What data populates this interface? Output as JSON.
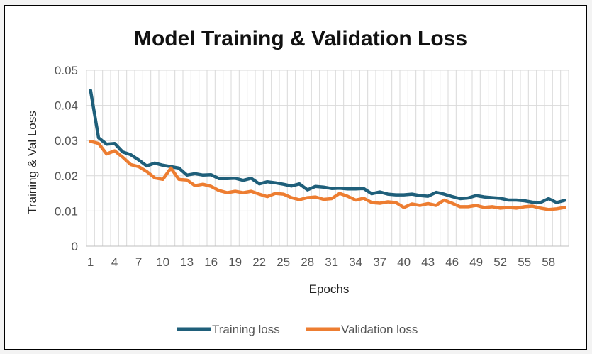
{
  "chart_data": {
    "type": "line",
    "title": "Model Training & Validation Loss",
    "xlabel": "Epochs",
    "ylabel": "Training & Val Loss",
    "ylim": [
      0,
      0.05
    ],
    "yticks": [
      "0",
      "0.01",
      "0.02",
      "0.03",
      "0.04",
      "0.05"
    ],
    "ytick_values": [
      0,
      0.01,
      0.02,
      0.03,
      0.04,
      0.05
    ],
    "xticks": [
      "1",
      "4",
      "7",
      "10",
      "13",
      "16",
      "19",
      "22",
      "25",
      "28",
      "31",
      "34",
      "37",
      "40",
      "43",
      "46",
      "49",
      "52",
      "55",
      "58"
    ],
    "epochs": 60,
    "grid": "vertical and horizontal",
    "legend": "bottom",
    "series": [
      {
        "name": "Training loss",
        "color": "#1f5f7a",
        "values": [
          0.0443,
          0.0308,
          0.029,
          0.0292,
          0.0268,
          0.026,
          0.0245,
          0.0228,
          0.0236,
          0.023,
          0.0226,
          0.0222,
          0.0202,
          0.0206,
          0.0202,
          0.0203,
          0.0192,
          0.0192,
          0.0193,
          0.0187,
          0.0193,
          0.0177,
          0.0183,
          0.018,
          0.0176,
          0.0171,
          0.0177,
          0.016,
          0.017,
          0.0168,
          0.0164,
          0.0165,
          0.0163,
          0.0163,
          0.0164,
          0.0149,
          0.0154,
          0.0148,
          0.0146,
          0.0146,
          0.0148,
          0.0144,
          0.0142,
          0.0153,
          0.0148,
          0.0141,
          0.0135,
          0.0137,
          0.0144,
          0.014,
          0.0138,
          0.0136,
          0.0131,
          0.0131,
          0.0129,
          0.0125,
          0.0124,
          0.0135,
          0.0124,
          0.013
        ]
      },
      {
        "name": "Validation loss",
        "color": "#ed7d31",
        "values": [
          0.0298,
          0.0292,
          0.0262,
          0.0271,
          0.0253,
          0.0232,
          0.0226,
          0.0212,
          0.0194,
          0.019,
          0.0222,
          0.019,
          0.0188,
          0.0172,
          0.0176,
          0.017,
          0.0158,
          0.0152,
          0.0156,
          0.0152,
          0.0156,
          0.0148,
          0.0141,
          0.015,
          0.0148,
          0.0138,
          0.0132,
          0.0138,
          0.014,
          0.0133,
          0.0135,
          0.015,
          0.0142,
          0.0131,
          0.0136,
          0.0124,
          0.0122,
          0.0126,
          0.0124,
          0.011,
          0.012,
          0.0116,
          0.0121,
          0.0116,
          0.0131,
          0.0122,
          0.0112,
          0.0112,
          0.0116,
          0.011,
          0.0112,
          0.0108,
          0.011,
          0.0108,
          0.0112,
          0.0114,
          0.0108,
          0.0104,
          0.0106,
          0.011
        ]
      }
    ]
  }
}
